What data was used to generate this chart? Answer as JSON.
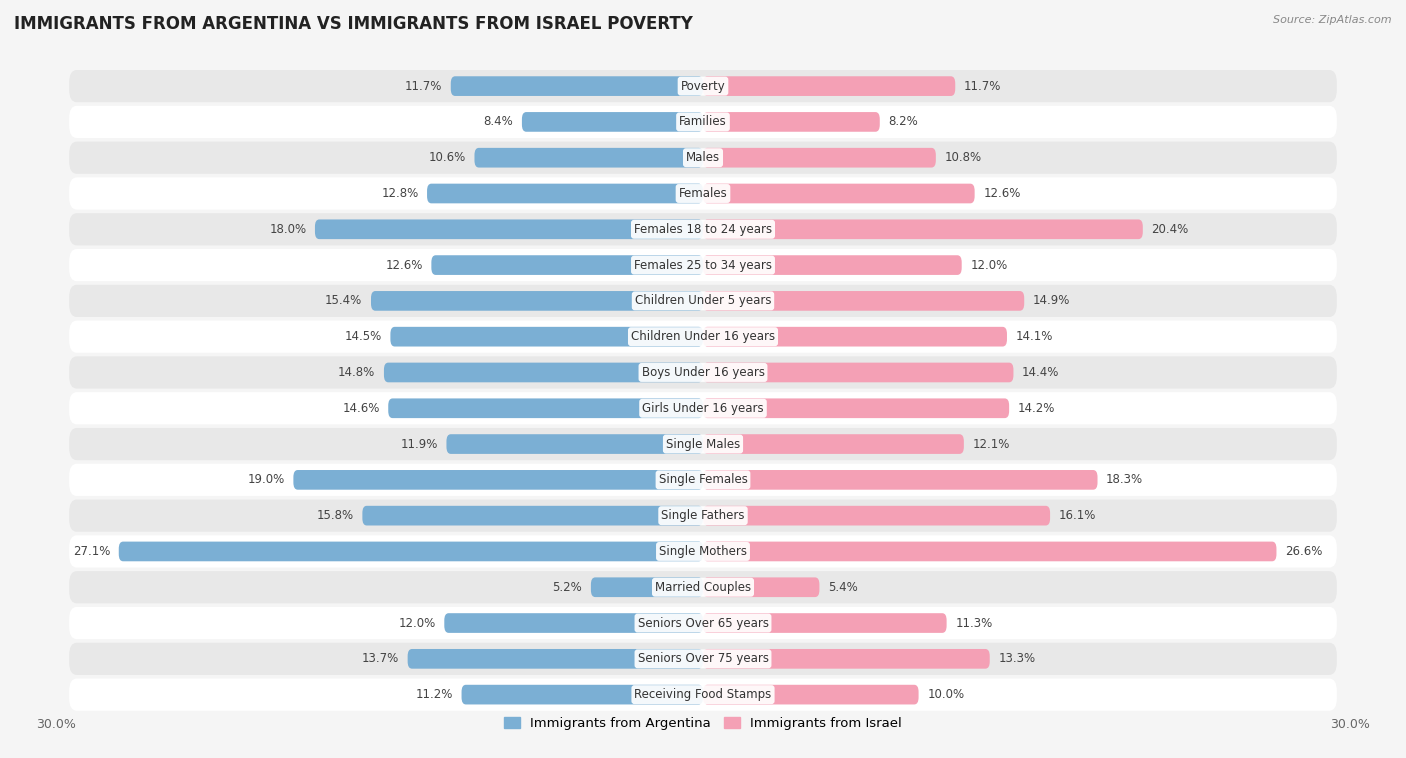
{
  "title": "IMMIGRANTS FROM ARGENTINA VS IMMIGRANTS FROM ISRAEL POVERTY",
  "source": "Source: ZipAtlas.com",
  "categories": [
    "Poverty",
    "Families",
    "Males",
    "Females",
    "Females 18 to 24 years",
    "Females 25 to 34 years",
    "Children Under 5 years",
    "Children Under 16 years",
    "Boys Under 16 years",
    "Girls Under 16 years",
    "Single Males",
    "Single Females",
    "Single Fathers",
    "Single Mothers",
    "Married Couples",
    "Seniors Over 65 years",
    "Seniors Over 75 years",
    "Receiving Food Stamps"
  ],
  "argentina_values": [
    11.7,
    8.4,
    10.6,
    12.8,
    18.0,
    12.6,
    15.4,
    14.5,
    14.8,
    14.6,
    11.9,
    19.0,
    15.8,
    27.1,
    5.2,
    12.0,
    13.7,
    11.2
  ],
  "israel_values": [
    11.7,
    8.2,
    10.8,
    12.6,
    20.4,
    12.0,
    14.9,
    14.1,
    14.4,
    14.2,
    12.1,
    18.3,
    16.1,
    26.6,
    5.4,
    11.3,
    13.3,
    10.0
  ],
  "argentina_color": "#7bafd4",
  "israel_color": "#f4a0b5",
  "background_color": "#f5f5f5",
  "row_white_color": "#ffffff",
  "row_gray_color": "#e8e8e8",
  "xlim": 30.0,
  "label_fontsize": 8.5,
  "title_fontsize": 12,
  "legend_label_argentina": "Immigrants from Argentina",
  "legend_label_israel": "Immigrants from Israel"
}
